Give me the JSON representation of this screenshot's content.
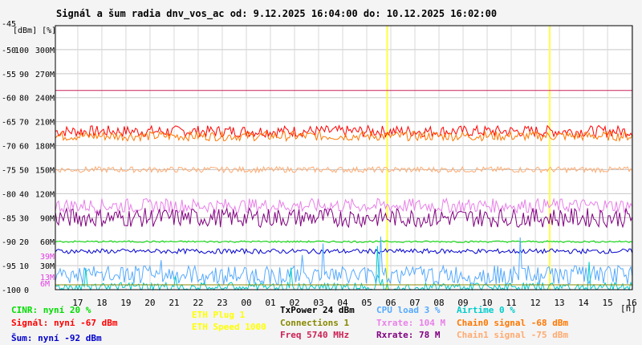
{
  "chart_data": {
    "type": "line",
    "title": "Signál a šum radia dnv_vos_ac od: 9.12.2025 16:04:00 do: 10.12.2025 16:02:00",
    "ylabel": "[dBm] [%]",
    "xlabel": "[h]",
    "ylim": [
      -100,
      -45
    ],
    "y_ticks": [
      {
        "dbm": "-45",
        "pct": "",
        "rate": ""
      },
      {
        "dbm": "-50",
        "pct": "100",
        "rate": "300M"
      },
      {
        "dbm": "-55",
        "pct": "90",
        "rate": "270M"
      },
      {
        "dbm": "-60",
        "pct": "80",
        "rate": "240M"
      },
      {
        "dbm": "-65",
        "pct": "70",
        "rate": "210M"
      },
      {
        "dbm": "-70",
        "pct": "60",
        "rate": "180M"
      },
      {
        "dbm": "-75",
        "pct": "50",
        "rate": "150M"
      },
      {
        "dbm": "-80",
        "pct": "40",
        "rate": "120M"
      },
      {
        "dbm": "-85",
        "pct": "30",
        "rate": "90M"
      },
      {
        "dbm": "-90",
        "pct": "20",
        "rate": "60M"
      },
      {
        "dbm": "-95",
        "pct": "10",
        "rate": "30M"
      },
      {
        "dbm": "-100",
        "pct": "0",
        "rate": ""
      }
    ],
    "x_ticks": [
      "17",
      "18",
      "19",
      "20",
      "21",
      "22",
      "23",
      "00",
      "01",
      "02",
      "03",
      "04",
      "05",
      "06",
      "07",
      "08",
      "09",
      "10",
      "11",
      "12",
      "13",
      "14",
      "15",
      "16"
    ],
    "x_range_hours": [
      16.07,
      40.03
    ],
    "grid": true,
    "markers": [
      {
        "hour": 29.85
      },
      {
        "hour": 36.6
      }
    ],
    "small_labels": [
      {
        "text": "39M",
        "color": "#e040e0"
      },
      {
        "text": "13M",
        "color": "#e040e0"
      },
      {
        "text": "6M",
        "color": "#e040e0"
      }
    ],
    "series": [
      {
        "name": "Signál",
        "color": "#ff0000",
        "level": -67,
        "noise": 1.2
      },
      {
        "name": "Chain0 signal",
        "color": "#ff7700",
        "level": -68,
        "noise": 1.0
      },
      {
        "name": "Chain1 signal",
        "color": "#ffaa70",
        "level": -75,
        "noise": 0.6
      },
      {
        "name": "Txrate",
        "color": "#e880e8",
        "level": -82.5,
        "noise": 1.5
      },
      {
        "name": "Rxrate",
        "color": "#800080",
        "level": -85,
        "noise": 2.0
      },
      {
        "name": "Šum",
        "color": "#0000cc",
        "level": -92,
        "noise": 0.5
      },
      {
        "name": "CINR",
        "color": "#00dd00",
        "level": -90,
        "noise": 0.2
      },
      {
        "name": "CPU load",
        "color": "#55aaff",
        "level": -97,
        "noise": 2.0
      },
      {
        "name": "Airtime",
        "color": "#00cccc",
        "level": -99.5,
        "noise": 1.0
      },
      {
        "name": "Freq",
        "color": "#cc2255",
        "level": -58.5,
        "noise": 0
      },
      {
        "name": "Connections",
        "color": "#888800",
        "level": -99,
        "noise": 0
      }
    ]
  },
  "legend": {
    "cinr": {
      "text": "CINR: nyní 20 %",
      "color": "#00dd00"
    },
    "signal": {
      "text": "Signál: nyní -67 dBm",
      "color": "#ff0000"
    },
    "sum": {
      "text": "Šum: nyní -92 dBm",
      "color": "#0000cc"
    },
    "eth_plug": {
      "text": "ETH Plug 1",
      "color": "#ffff00"
    },
    "eth_speed": {
      "text": "ETH Speed 1000",
      "color": "#ffff00"
    },
    "txpower": {
      "text": "TxPower 24 dBm",
      "color": "#000000"
    },
    "connections": {
      "text": "Connections 1",
      "color": "#888800"
    },
    "freq": {
      "text": "Freq 5740 MHz",
      "color": "#cc2255"
    },
    "cpu": {
      "text": "CPU load 3 %",
      "color": "#55aaff"
    },
    "txrate": {
      "text": "Txrate: 104 M",
      "color": "#e880e8"
    },
    "rxrate": {
      "text": "Rxrate: 78 M",
      "color": "#800080"
    },
    "airtime": {
      "text": "Airtime 0 %",
      "color": "#00cccc"
    },
    "chain0": {
      "text": "Chain0 signal -68 dBm",
      "color": "#ff7700"
    },
    "chain1": {
      "text": "Chain1 signal -75 dBm",
      "color": "#ffaa70"
    }
  }
}
